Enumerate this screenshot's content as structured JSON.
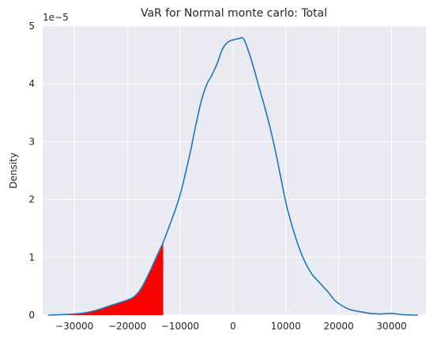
{
  "chart_data": {
    "type": "area",
    "title": "VaR for Normal monte carlo: Total",
    "xlabel": "",
    "ylabel": "Density",
    "y_scale_label": "1e−5",
    "xlim": [
      -36000,
      36500
    ],
    "ylim": [
      0,
      5
    ],
    "x_ticks": [
      -30000,
      -20000,
      -10000,
      0,
      10000,
      20000,
      30000
    ],
    "x_tick_labels": [
      "−30000",
      "−20000",
      "−10000",
      "0",
      "10000",
      "20000",
      "30000"
    ],
    "y_ticks": [
      0,
      1,
      2,
      3,
      4,
      5
    ],
    "y_tick_labels": [
      "0",
      "1",
      "2",
      "3",
      "4",
      "5"
    ],
    "grid": true,
    "colors": {
      "background": "#eaeaf2",
      "line": "#1f77b4",
      "fill": "#ff0000",
      "grid": "#ffffff"
    },
    "var_threshold": -13200,
    "series": [
      {
        "x": [
          -35000,
          -32000,
          -30000,
          -28000,
          -26000,
          -24000,
          -22000,
          -20000,
          -19000,
          -18000,
          -17000,
          -16000,
          -15000,
          -14000,
          -13200,
          -12000,
          -11000,
          -10000,
          -9000,
          -8000,
          -7000,
          -6000,
          -5000,
          -4000,
          -3000,
          -2000,
          -1000,
          0,
          1000,
          2000,
          3000,
          4000,
          5000,
          6000,
          7000,
          8000,
          9000,
          10000,
          11000,
          12000,
          13000,
          14000,
          15000,
          16000,
          17000,
          18000,
          19000,
          20000,
          22000,
          24000,
          26000,
          28000,
          30000,
          32000,
          35000
        ],
        "y": [
          0.0,
          0.01,
          0.02,
          0.04,
          0.08,
          0.14,
          0.2,
          0.26,
          0.3,
          0.38,
          0.52,
          0.7,
          0.9,
          1.1,
          1.26,
          1.55,
          1.8,
          2.08,
          2.45,
          2.85,
          3.3,
          3.7,
          3.98,
          4.15,
          4.35,
          4.6,
          4.72,
          4.76,
          4.78,
          4.78,
          4.55,
          4.25,
          3.92,
          3.6,
          3.25,
          2.85,
          2.4,
          1.95,
          1.6,
          1.3,
          1.05,
          0.85,
          0.7,
          0.6,
          0.5,
          0.4,
          0.28,
          0.2,
          0.1,
          0.06,
          0.03,
          0.02,
          0.03,
          0.01,
          0.0
        ]
      }
    ]
  }
}
